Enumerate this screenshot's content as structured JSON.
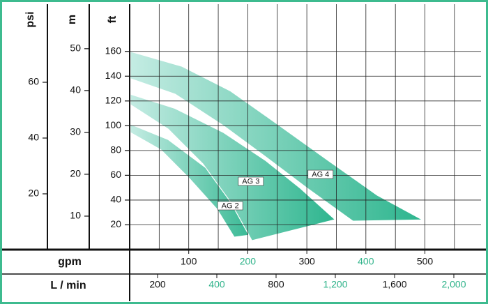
{
  "chart_data": {
    "type": "band",
    "axes": [
      {
        "label": "psi",
        "ylim": [
          0,
          87.5
        ],
        "yticks": [
          20,
          40,
          60
        ]
      },
      {
        "label": "m",
        "ylim": [
          2,
          60.3
        ],
        "yticks": [
          10,
          20,
          30,
          40,
          50
        ]
      },
      {
        "label": "ft",
        "ylim": [
          0,
          197
        ],
        "yticks": [
          20,
          40,
          60,
          80,
          100,
          120,
          140,
          160
        ]
      }
    ],
    "x_label": "gpm",
    "xlim": [
      0,
      595
    ],
    "xticks": [
      100,
      200,
      300,
      400,
      500
    ],
    "x2_label": "L / min",
    "x2_categories": [
      "200",
      "400",
      "800",
      "1,200",
      "1,600",
      "2,000"
    ],
    "tick_label_colors": [
      "#111111",
      "#2fb38a"
    ],
    "gradient": [
      "#c4ece3",
      "#2db58e"
    ],
    "frame_color": "#3dbb8f",
    "series": [
      {
        "name": "AG 2",
        "x_upper": [
          1.2,
          65,
          136,
          183,
          221
        ],
        "upper": [
          101.3,
          88.9,
          63.6,
          38.3,
          12.9
        ],
        "x_lower": [
          1.2,
          53,
          100,
          148,
          177
        ],
        "lower": [
          94.5,
          80.5,
          58,
          32.6,
          10.1
        ]
      },
      {
        "name": "AG 3",
        "x_upper": [
          1.2,
          76.7,
          159,
          230,
          289,
          348
        ],
        "upper": [
          125.5,
          114,
          94.5,
          72,
          49.5,
          24.2
        ],
        "x_lower": [
          1.2,
          65,
          124,
          171,
          207
        ],
        "lower": [
          117,
          97.4,
          69.2,
          38.3,
          7.3
        ]
      },
      {
        "name": "AG 4",
        "x_upper": [
          1.2,
          88.5,
          171,
          254,
          336,
          419,
          496
        ],
        "upper": [
          160,
          148,
          128,
          100,
          72,
          44,
          24
        ],
        "x_lower": [
          1.2,
          77,
          159,
          230,
          301,
          378
        ],
        "lower": [
          138,
          125.5,
          100,
          75,
          49.5,
          23
        ]
      }
    ]
  }
}
